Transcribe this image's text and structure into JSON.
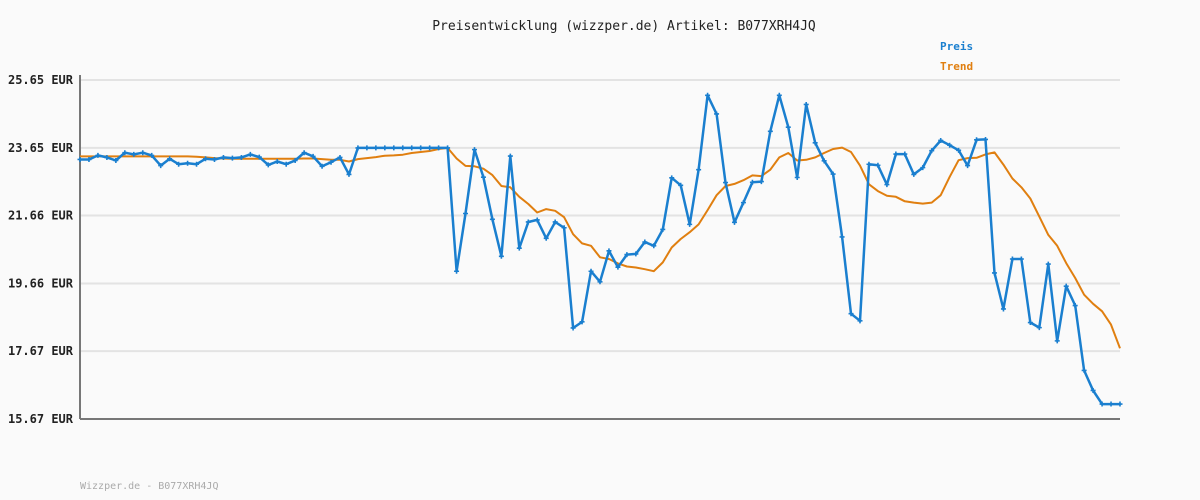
{
  "chart_data": {
    "type": "line",
    "title": "Preisentwicklung (wizzper.de) Artikel: B077XRH4JQ",
    "xlabel": "",
    "ylabel": "",
    "ylim": [
      15.67,
      25.65
    ],
    "yticks": [
      "25.65 EUR",
      "23.65 EUR",
      "21.66 EUR",
      "19.66 EUR",
      "17.67 EUR",
      "15.67 EUR"
    ],
    "ytick_values": [
      25.65,
      23.65,
      21.66,
      19.66,
      17.67,
      15.67
    ],
    "grid": true,
    "legend_position": "top-right",
    "series": [
      {
        "name": "Preis",
        "color": "#1a7fcf",
        "markers": true,
        "values": [
          23.31,
          23.31,
          23.43,
          23.37,
          23.28,
          23.51,
          23.46,
          23.51,
          23.43,
          23.13,
          23.33,
          23.17,
          23.2,
          23.17,
          23.33,
          23.31,
          23.37,
          23.35,
          23.37,
          23.46,
          23.38,
          23.15,
          23.25,
          23.17,
          23.28,
          23.51,
          23.4,
          23.11,
          23.23,
          23.37,
          22.87,
          23.65,
          23.65,
          23.65,
          23.65,
          23.65,
          23.65,
          23.65,
          23.65,
          23.65,
          23.65,
          23.65,
          20.02,
          21.72,
          23.6,
          22.79,
          21.55,
          20.46,
          23.41,
          20.7,
          21.47,
          21.53,
          20.99,
          21.47,
          21.3,
          18.35,
          18.53,
          20.02,
          19.71,
          20.62,
          20.14,
          20.51,
          20.53,
          20.88,
          20.77,
          21.25,
          22.77,
          22.55,
          21.4,
          23.01,
          25.2,
          24.65,
          22.63,
          21.46,
          22.04,
          22.64,
          22.66,
          24.14,
          25.2,
          24.26,
          22.78,
          24.93,
          23.8,
          23.27,
          22.88,
          21.03,
          18.77,
          18.56,
          23.17,
          23.14,
          22.57,
          23.47,
          23.47,
          22.87,
          23.07,
          23.57,
          23.87,
          23.73,
          23.58,
          23.13,
          23.89,
          23.9,
          19.97,
          18.91,
          20.38,
          20.38,
          18.51,
          18.36,
          20.23,
          17.97,
          19.58,
          19.01,
          17.1,
          16.51,
          16.11,
          16.11,
          16.11
        ]
      },
      {
        "name": "Trend",
        "color": "#e07f10",
        "markers": false,
        "values": [
          23.4,
          23.4,
          23.4,
          23.4,
          23.4,
          23.4,
          23.4,
          23.4,
          23.4,
          23.4,
          23.4,
          23.4,
          23.4,
          23.39,
          23.37,
          23.35,
          23.34,
          23.33,
          23.33,
          23.33,
          23.33,
          23.33,
          23.33,
          23.33,
          23.33,
          23.34,
          23.34,
          23.32,
          23.3,
          23.3,
          23.25,
          23.32,
          23.35,
          23.38,
          23.42,
          23.43,
          23.45,
          23.5,
          23.53,
          23.56,
          23.62,
          23.65,
          23.34,
          23.12,
          23.11,
          23.04,
          22.85,
          22.53,
          22.49,
          22.21,
          22.0,
          21.75,
          21.85,
          21.8,
          21.61,
          21.11,
          20.84,
          20.77,
          20.43,
          20.38,
          20.25,
          20.16,
          20.13,
          20.08,
          20.02,
          20.28,
          20.72,
          20.97,
          21.17,
          21.4,
          21.82,
          22.26,
          22.53,
          22.59,
          22.7,
          22.84,
          22.82,
          23.01,
          23.37,
          23.5,
          23.28,
          23.3,
          23.37,
          23.5,
          23.62,
          23.66,
          23.53,
          23.13,
          22.58,
          22.38,
          22.24,
          22.21,
          22.08,
          22.04,
          22.01,
          22.04,
          22.26,
          22.8,
          23.29,
          23.35,
          23.36,
          23.46,
          23.52,
          23.16,
          22.75,
          22.49,
          22.16,
          21.63,
          21.09,
          20.77,
          20.26,
          19.82,
          19.33,
          19.06,
          18.84,
          18.45,
          17.75
        ]
      }
    ]
  },
  "legend": {
    "preis": "Preis",
    "trend": "Trend"
  },
  "footer": "Wizzper.de - B077XRH4JQ"
}
